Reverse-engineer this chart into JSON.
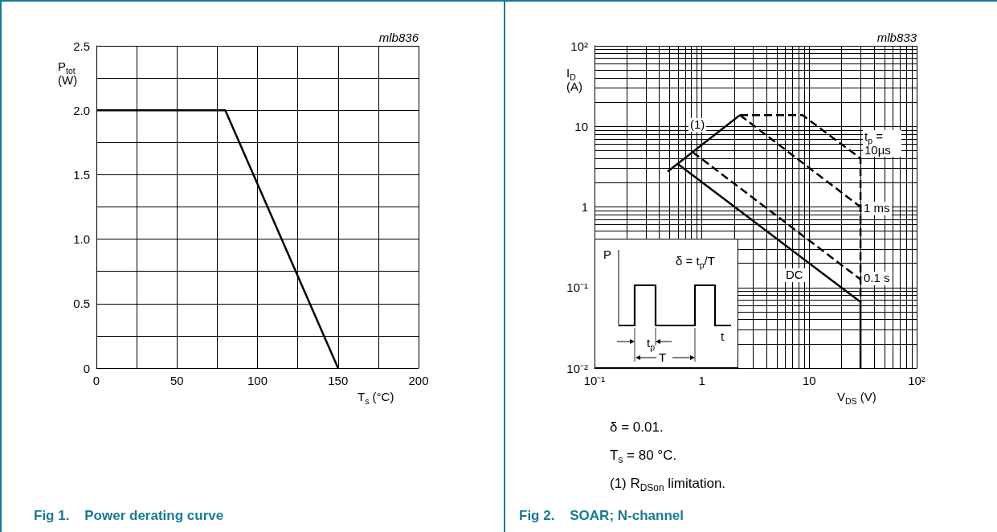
{
  "chart_data": [
    {
      "type": "line",
      "title": "Fig 1.    Power derating curve",
      "xlabel": "T$_{s}$ (°C)",
      "ylabel": "P$_{tot}$ (W)",
      "x": [
        0,
        80,
        150
      ],
      "values": [
        2,
        2,
        0
      ],
      "color": "#000000",
      "marker": "none",
      "line_style": "solid",
      "grid": true,
      "xlim": [
        0,
        200
      ],
      "xticks": [
        0,
        {
          "value": 25,
          "label": null
        },
        50,
        {
          "value": 75,
          "label": null
        },
        100,
        {
          "value": 125,
          "label": null
        },
        150,
        {
          "value": 175,
          "label": null
        },
        200
      ],
      "ylim": [
        0,
        2.5
      ],
      "yticks": [
        0,
        {
          "value": 0.25,
          "label": null
        },
        0.5,
        {
          "value": 0.75,
          "label": null
        },
        {
          "value": 1,
          "label": "1.0"
        },
        {
          "value": 1.25,
          "label": null
        },
        1.5,
        {
          "value": 1.75,
          "label": null
        },
        {
          "value": 2,
          "label": "2.0"
        },
        {
          "value": 2.25,
          "label": null
        },
        2.5
      ],
      "annotations": [
        "mlb836"
      ]
    },
    {
      "type": "line",
      "title": "Fig 2.    SOAR; N-channel",
      "xlabel": "V$_{DS}$ (V)",
      "ylabel": "I$_{D}$ (A)",
      "log": "xy",
      "grid": true,
      "marker": "none",
      "series": [
        {
          "name": "(1)",
          "color": "#000000",
          "line_style": "solid",
          "x": [
            0.48,
            2.26
          ],
          "values": [
            2.75,
            13.8
          ]
        },
        {
          "name": "t$_{p}$ = 10µs",
          "color": "#000000",
          "line_style": "dashed",
          "x": [
            2.26,
            8.65,
            30,
            30
          ],
          "values": [
            13.8,
            13.8,
            4.0,
            0.066
          ]
        },
        {
          "name": "1 ms",
          "color": "#000000",
          "line_style": "dashed",
          "x": [
            2.26,
            30
          ],
          "values": [
            13.8,
            1.0
          ]
        },
        {
          "name": "0.1 s",
          "color": "#000000",
          "line_style": "dashed",
          "x": [
            0.82,
            30
          ],
          "values": [
            4.8,
            0.126
          ]
        },
        {
          "name": "DC",
          "color": "#000000",
          "line_style": "solid",
          "x": [
            0.6,
            30,
            30
          ],
          "values": [
            3.4,
            0.066,
            0.01
          ]
        }
      ],
      "xlim": [
        0.1,
        100
      ],
      "xticks": [
        {
          "value": 0.1,
          "label": "10⁻¹"
        },
        {
          "value": 0.2,
          "label": null
        },
        {
          "value": 0.3,
          "label": null
        },
        {
          "value": 0.4,
          "label": null
        },
        {
          "value": 0.5,
          "label": null
        },
        {
          "value": 0.6,
          "label": null
        },
        {
          "value": 0.7,
          "label": null
        },
        {
          "value": 0.8,
          "label": null
        },
        {
          "value": 0.9,
          "label": null
        },
        1,
        {
          "value": 2,
          "label": null
        },
        {
          "value": 3,
          "label": null
        },
        {
          "value": 4,
          "label": null
        },
        {
          "value": 5,
          "label": null
        },
        {
          "value": 6,
          "label": null
        },
        {
          "value": 7,
          "label": null
        },
        {
          "value": 8,
          "label": null
        },
        {
          "value": 9,
          "label": null
        },
        10,
        {
          "value": 20,
          "label": null
        },
        {
          "value": 30,
          "label": null
        },
        {
          "value": 40,
          "label": null
        },
        {
          "value": 50,
          "label": null
        },
        {
          "value": 60,
          "label": null
        },
        {
          "value": 70,
          "label": null
        },
        {
          "value": 80,
          "label": null
        },
        {
          "value": 90,
          "label": null
        },
        {
          "value": 100,
          "label": "10²"
        }
      ],
      "ylim": [
        0.01,
        100
      ],
      "yticks": [
        {
          "value": 0.01,
          "label": "10⁻²"
        },
        {
          "value": 0.02,
          "label": null
        },
        {
          "value": 0.03,
          "label": null
        },
        {
          "value": 0.04,
          "label": null
        },
        {
          "value": 0.05,
          "label": null
        },
        {
          "value": 0.06,
          "label": null
        },
        {
          "value": 0.07,
          "label": null
        },
        {
          "value": 0.08,
          "label": null
        },
        {
          "value": 0.09,
          "label": null
        },
        {
          "value": 0.1,
          "label": "10⁻¹"
        },
        {
          "value": 0.2,
          "label": null
        },
        {
          "value": 0.3,
          "label": null
        },
        {
          "value": 0.4,
          "label": null
        },
        {
          "value": 0.5,
          "label": null
        },
        {
          "value": 0.6,
          "label": null
        },
        {
          "value": 0.7,
          "label": null
        },
        {
          "value": 0.8,
          "label": null
        },
        {
          "value": 0.9,
          "label": null
        },
        1,
        {
          "value": 2,
          "label": null
        },
        {
          "value": 3,
          "label": null
        },
        {
          "value": 4,
          "label": null
        },
        {
          "value": 5,
          "label": null
        },
        {
          "value": 6,
          "label": null
        },
        {
          "value": 7,
          "label": null
        },
        {
          "value": 8,
          "label": null
        },
        {
          "value": 9,
          "label": null
        },
        10,
        {
          "value": 20,
          "label": null
        },
        {
          "value": 30,
          "label": null
        },
        {
          "value": 40,
          "label": null
        },
        {
          "value": 50,
          "label": null
        },
        {
          "value": 60,
          "label": null
        },
        {
          "value": 70,
          "label": null
        },
        {
          "value": 80,
          "label": null
        },
        {
          "value": 90,
          "label": null
        },
        {
          "value": 100,
          "label": "10²"
        }
      ],
      "annotations": [
        "mlb833",
        "δ = 0.01.",
        "T$_{s}$ = 80 °C.",
        "(1) R$_{DSon}$ limitation.",
        "P",
        "δ = t$_{p}$/T",
        "t$_{p}$",
        "T",
        "t"
      ]
    }
  ]
}
